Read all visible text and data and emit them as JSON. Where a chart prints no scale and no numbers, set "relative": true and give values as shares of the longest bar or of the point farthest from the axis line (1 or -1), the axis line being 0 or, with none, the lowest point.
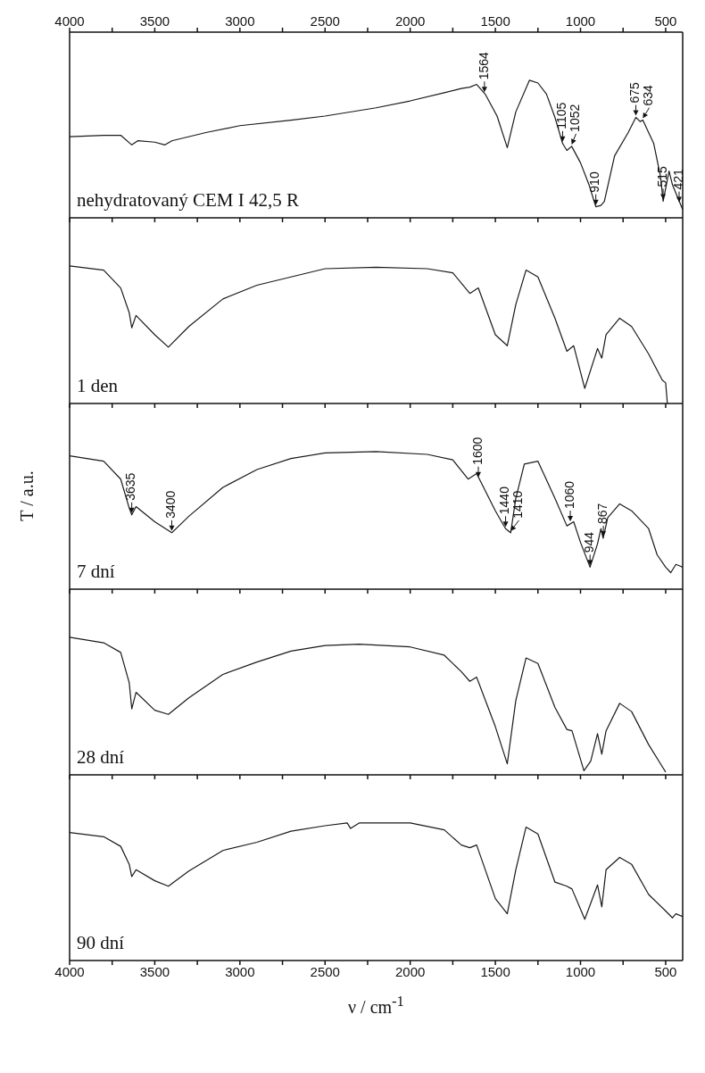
{
  "chart_data": [
    {
      "type": "line",
      "title": "nehydratovaný CEM I 42,5 R",
      "relative": true,
      "color": "#1a1a1a",
      "xlim": [
        4000,
        400
      ],
      "xticks": [
        4000,
        {
          "value": 3750,
          "label": null
        },
        3500,
        {
          "value": 3250,
          "label": null
        },
        3000,
        {
          "value": 2750,
          "label": null
        },
        2500,
        {
          "value": 2250,
          "label": null
        },
        2000,
        {
          "value": 1750,
          "label": null
        },
        1500,
        {
          "value": 1250,
          "label": null
        },
        1000,
        {
          "value": 750,
          "label": null
        },
        500
      ],
      "x": [
        4000,
        3800,
        3700,
        3635,
        3600,
        3500,
        3440,
        3400,
        3200,
        3000,
        2700,
        2500,
        2200,
        2000,
        1800,
        1700,
        1650,
        1610,
        1560,
        1490,
        1430,
        1380,
        1300,
        1250,
        1200,
        1150,
        1105,
        1080,
        1052,
        1000,
        950,
        910,
        880,
        860,
        800,
        720,
        675,
        650,
        634,
        600,
        570,
        530,
        515,
        480,
        460,
        440,
        400
      ],
      "values": [
        0.59,
        0.6,
        0.6,
        0.53,
        0.56,
        0.55,
        0.53,
        0.56,
        0.62,
        0.67,
        0.71,
        0.74,
        0.8,
        0.85,
        0.91,
        0.94,
        0.95,
        0.97,
        0.9,
        0.74,
        0.51,
        0.77,
        1.0,
        0.98,
        0.9,
        0.73,
        0.54,
        0.49,
        0.52,
        0.4,
        0.24,
        0.08,
        0.09,
        0.12,
        0.45,
        0.62,
        0.73,
        0.7,
        0.71,
        0.62,
        0.54,
        0.3,
        0.12,
        0.34,
        0.24,
        0.18,
        0.06
      ],
      "annotations": [
        {
          "text": "1564",
          "x": 1564,
          "y": 0.9
        },
        {
          "text": "1105",
          "x": 1105,
          "y": 0.54
        },
        {
          "text": "1052",
          "x": 1052,
          "y": 0.52
        },
        {
          "text": "675",
          "x": 675,
          "y": 0.73
        },
        {
          "text": "634",
          "x": 634,
          "y": 0.71
        },
        {
          "text": "421",
          "x": 421,
          "y": 0.1
        },
        {
          "text": "910",
          "x": 910,
          "y": 0.08
        },
        {
          "text": "515",
          "x": 515,
          "y": 0.12
        }
      ]
    },
    {
      "type": "line",
      "title": "1 den",
      "relative": true,
      "color": "#1a1a1a",
      "tick_labels": false,
      "xlim": [
        4000,
        400
      ],
      "xticks": [
        4000,
        {
          "value": 3750,
          "label": null
        },
        3500,
        {
          "value": 3250,
          "label": null
        },
        3000,
        {
          "value": 2750,
          "label": null
        },
        2500,
        {
          "value": 2250,
          "label": null
        },
        2000,
        {
          "value": 1750,
          "label": null
        },
        1500,
        {
          "value": 1250,
          "label": null
        },
        1000,
        {
          "value": 750,
          "label": null
        },
        500
      ],
      "x": [
        4000,
        3800,
        3700,
        3650,
        3635,
        3610,
        3500,
        3420,
        3300,
        3100,
        2900,
        2700,
        2500,
        2200,
        1900,
        1750,
        1650,
        1600,
        1500,
        1430,
        1380,
        1320,
        1250,
        1150,
        1080,
        1040,
        975,
        900,
        875,
        850,
        770,
        700,
        600,
        520,
        500,
        490
      ],
      "values": [
        1.0,
        0.97,
        0.84,
        0.66,
        0.55,
        0.64,
        0.5,
        0.41,
        0.56,
        0.76,
        0.86,
        0.92,
        0.98,
        0.99,
        0.98,
        0.95,
        0.8,
        0.84,
        0.5,
        0.42,
        0.72,
        0.97,
        0.92,
        0.62,
        0.38,
        0.42,
        0.11,
        0.4,
        0.33,
        0.5,
        0.62,
        0.56,
        0.36,
        0.17,
        0.15,
        0.0
      ]
    },
    {
      "type": "line",
      "title": "7 dní",
      "ylabel": "T / a.u.",
      "relative": true,
      "color": "#1a1a1a",
      "tick_labels": false,
      "xlim": [
        4000,
        400
      ],
      "xticks": [
        4000,
        {
          "value": 3750,
          "label": null
        },
        3500,
        {
          "value": 3250,
          "label": null
        },
        3000,
        {
          "value": 2750,
          "label": null
        },
        2500,
        {
          "value": 2250,
          "label": null
        },
        2000,
        {
          "value": 1750,
          "label": null
        },
        1500,
        {
          "value": 1250,
          "label": null
        },
        1000,
        {
          "value": 750,
          "label": null
        },
        500
      ],
      "x": [
        4000,
        3800,
        3700,
        3650,
        3635,
        3610,
        3500,
        3400,
        3300,
        3100,
        2900,
        2700,
        2500,
        2200,
        1900,
        1750,
        1660,
        1610,
        1500,
        1440,
        1410,
        1380,
        1330,
        1250,
        1150,
        1080,
        1040,
        1000,
        944,
        900,
        880,
        867,
        840,
        770,
        700,
        600,
        550,
        500,
        470,
        440,
        400
      ],
      "values": [
        0.97,
        0.93,
        0.8,
        0.59,
        0.54,
        0.6,
        0.49,
        0.41,
        0.53,
        0.74,
        0.87,
        0.95,
        0.99,
        1.0,
        0.98,
        0.94,
        0.8,
        0.84,
        0.57,
        0.44,
        0.41,
        0.66,
        0.91,
        0.93,
        0.66,
        0.46,
        0.49,
        0.34,
        0.16,
        0.33,
        0.44,
        0.37,
        0.52,
        0.62,
        0.57,
        0.44,
        0.25,
        0.16,
        0.12,
        0.18,
        0.16
      ],
      "annotations": [
        {
          "text": "3635",
          "x": 3635,
          "y": 0.54
        },
        {
          "text": "3400",
          "x": 3400,
          "y": 0.41
        },
        {
          "text": "1600",
          "x": 1600,
          "y": 0.8
        },
        {
          "text": "1440",
          "x": 1440,
          "y": 0.44
        },
        {
          "text": "1410",
          "x": 1410,
          "y": 0.41
        },
        {
          "text": "1060",
          "x": 1060,
          "y": 0.48
        },
        {
          "text": "944",
          "x": 944,
          "y": 0.16
        },
        {
          "text": "867",
          "x": 867,
          "y": 0.37
        }
      ]
    },
    {
      "type": "line",
      "title": "28 dní",
      "relative": true,
      "color": "#1a1a1a",
      "tick_labels": false,
      "xlim": [
        4000,
        400
      ],
      "xticks": [
        4000,
        {
          "value": 3750,
          "label": null
        },
        3500,
        {
          "value": 3250,
          "label": null
        },
        3000,
        {
          "value": 2750,
          "label": null
        },
        2500,
        {
          "value": 2250,
          "label": null
        },
        2000,
        {
          "value": 1750,
          "label": null
        },
        1500,
        {
          "value": 1250,
          "label": null
        },
        1000,
        {
          "value": 750,
          "label": null
        },
        500
      ],
      "x": [
        4000,
        3800,
        3700,
        3650,
        3635,
        3610,
        3500,
        3420,
        3300,
        3100,
        2900,
        2700,
        2500,
        2300,
        2000,
        1800,
        1700,
        1650,
        1610,
        1500,
        1430,
        1380,
        1320,
        1250,
        1150,
        1080,
        1050,
        980,
        940,
        900,
        875,
        850,
        770,
        700,
        600,
        520,
        500
      ],
      "values": [
        1.0,
        0.96,
        0.89,
        0.67,
        0.48,
        0.6,
        0.47,
        0.44,
        0.56,
        0.73,
        0.82,
        0.9,
        0.94,
        0.95,
        0.93,
        0.87,
        0.75,
        0.68,
        0.71,
        0.35,
        0.08,
        0.54,
        0.85,
        0.81,
        0.49,
        0.33,
        0.32,
        0.03,
        0.1,
        0.3,
        0.15,
        0.32,
        0.52,
        0.46,
        0.22,
        0.06,
        0.02
      ]
    },
    {
      "type": "line",
      "title": "90 dní",
      "xlabel": "ν / cm$^{-1}$",
      "relative": true,
      "color": "#1a1a1a",
      "xlim": [
        4000,
        400
      ],
      "xticks": [
        4000,
        {
          "value": 3750,
          "label": null
        },
        3500,
        {
          "value": 3250,
          "label": null
        },
        3000,
        {
          "value": 2750,
          "label": null
        },
        2500,
        {
          "value": 2250,
          "label": null
        },
        2000,
        {
          "value": 1750,
          "label": null
        },
        1500,
        {
          "value": 1250,
          "label": null
        },
        1000,
        {
          "value": 750,
          "label": null
        },
        500
      ],
      "x": [
        4000,
        3800,
        3700,
        3650,
        3635,
        3610,
        3500,
        3420,
        3300,
        3100,
        2900,
        2700,
        2500,
        2370,
        2350,
        2300,
        2000,
        1800,
        1700,
        1650,
        1610,
        1500,
        1430,
        1380,
        1320,
        1250,
        1150,
        1080,
        1050,
        975,
        900,
        875,
        850,
        770,
        700,
        600,
        500,
        460,
        440,
        400
      ],
      "values": [
        0.93,
        0.9,
        0.83,
        0.7,
        0.61,
        0.66,
        0.58,
        0.54,
        0.65,
        0.8,
        0.86,
        0.94,
        0.98,
        1.0,
        0.96,
        1.0,
        1.0,
        0.95,
        0.84,
        0.82,
        0.84,
        0.45,
        0.34,
        0.66,
        0.97,
        0.92,
        0.57,
        0.54,
        0.52,
        0.3,
        0.55,
        0.39,
        0.66,
        0.75,
        0.7,
        0.48,
        0.36,
        0.31,
        0.34,
        0.32
      ]
    }
  ]
}
